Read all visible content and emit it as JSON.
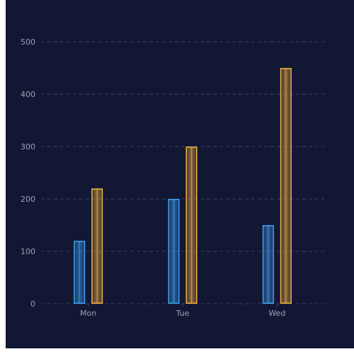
{
  "chart_data": {
    "type": "bar",
    "categories": [
      "Mon",
      "Tue",
      "Wed"
    ],
    "series": [
      {
        "values": [
          120,
          200,
          150
        ],
        "color": "#3fa3f5"
      },
      {
        "values": [
          220,
          300,
          450
        ],
        "color": "#f5b342"
      }
    ],
    "ylim": [
      0,
      500
    ],
    "yticks": [
      0,
      100,
      200,
      300,
      400,
      500
    ],
    "grid": true,
    "gridline_color": "#3a4262",
    "background": "#121833",
    "legend": "none"
  }
}
